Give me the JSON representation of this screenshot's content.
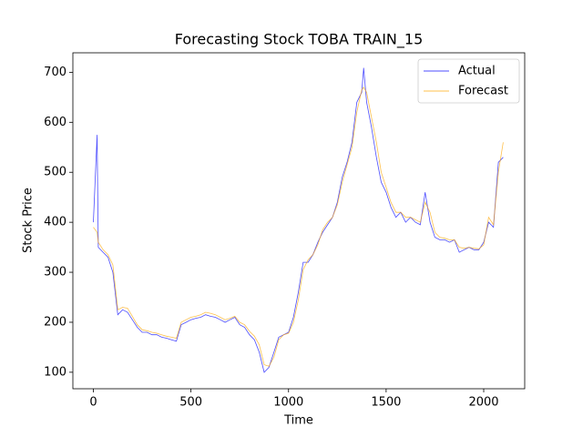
{
  "chart_data": {
    "type": "line",
    "title": "Forecasting Stock TOBA TRAIN_15",
    "x_label": "Time",
    "y_label": "Stock Price",
    "x": [
      0,
      19,
      25,
      50,
      75,
      100,
      125,
      150,
      175,
      200,
      225,
      250,
      275,
      300,
      325,
      350,
      375,
      400,
      425,
      450,
      475,
      500,
      525,
      550,
      575,
      600,
      625,
      650,
      675,
      700,
      725,
      750,
      775,
      800,
      825,
      850,
      875,
      900,
      925,
      950,
      975,
      1000,
      1025,
      1050,
      1075,
      1100,
      1125,
      1150,
      1175,
      1200,
      1225,
      1250,
      1275,
      1300,
      1325,
      1350,
      1375,
      1385,
      1400,
      1425,
      1450,
      1475,
      1500,
      1525,
      1550,
      1575,
      1600,
      1625,
      1650,
      1675,
      1700,
      1725,
      1750,
      1775,
      1800,
      1825,
      1850,
      1875,
      1900,
      1925,
      1950,
      1975,
      2000,
      2025,
      2050,
      2075,
      2100
    ],
    "series": [
      {
        "name": "Actual",
        "color": "blue",
        "values": [
          400,
          575,
          350,
          340,
          330,
          300,
          215,
          225,
          220,
          205,
          190,
          180,
          180,
          175,
          175,
          170,
          168,
          165,
          162,
          195,
          200,
          205,
          208,
          210,
          215,
          212,
          210,
          205,
          200,
          205,
          210,
          195,
          190,
          175,
          165,
          140,
          100,
          110,
          140,
          170,
          175,
          180,
          210,
          260,
          320,
          320,
          335,
          360,
          380,
          395,
          410,
          440,
          490,
          520,
          560,
          640,
          660,
          709,
          640,
          590,
          530,
          480,
          460,
          430,
          410,
          420,
          400,
          410,
          400,
          395,
          460,
          400,
          370,
          365,
          365,
          360,
          365,
          340,
          345,
          350,
          345,
          345,
          360,
          400,
          390,
          520,
          530
        ]
      },
      {
        "name": "Forecast",
        "color": "orange",
        "values": [
          390,
          380,
          360,
          345,
          335,
          315,
          225,
          230,
          228,
          212,
          195,
          185,
          183,
          180,
          178,
          175,
          172,
          170,
          168,
          200,
          205,
          210,
          212,
          215,
          220,
          218,
          215,
          210,
          205,
          208,
          212,
          200,
          195,
          182,
          172,
          155,
          115,
          112,
          130,
          165,
          175,
          178,
          200,
          245,
          305,
          325,
          335,
          355,
          385,
          400,
          410,
          435,
          480,
          515,
          550,
          620,
          665,
          670,
          660,
          610,
          560,
          500,
          470,
          440,
          420,
          420,
          410,
          410,
          405,
          400,
          440,
          420,
          380,
          370,
          368,
          365,
          365,
          350,
          348,
          350,
          348,
          347,
          355,
          410,
          395,
          500,
          560
        ]
      }
    ],
    "xlim": [
      -105,
      2210
    ],
    "ylim": [
      67,
      739
    ],
    "xticks": [
      0,
      500,
      1000,
      1500,
      2000
    ],
    "yticks": [
      100,
      200,
      300,
      400,
      500,
      600,
      700
    ],
    "legend": "upper right"
  }
}
